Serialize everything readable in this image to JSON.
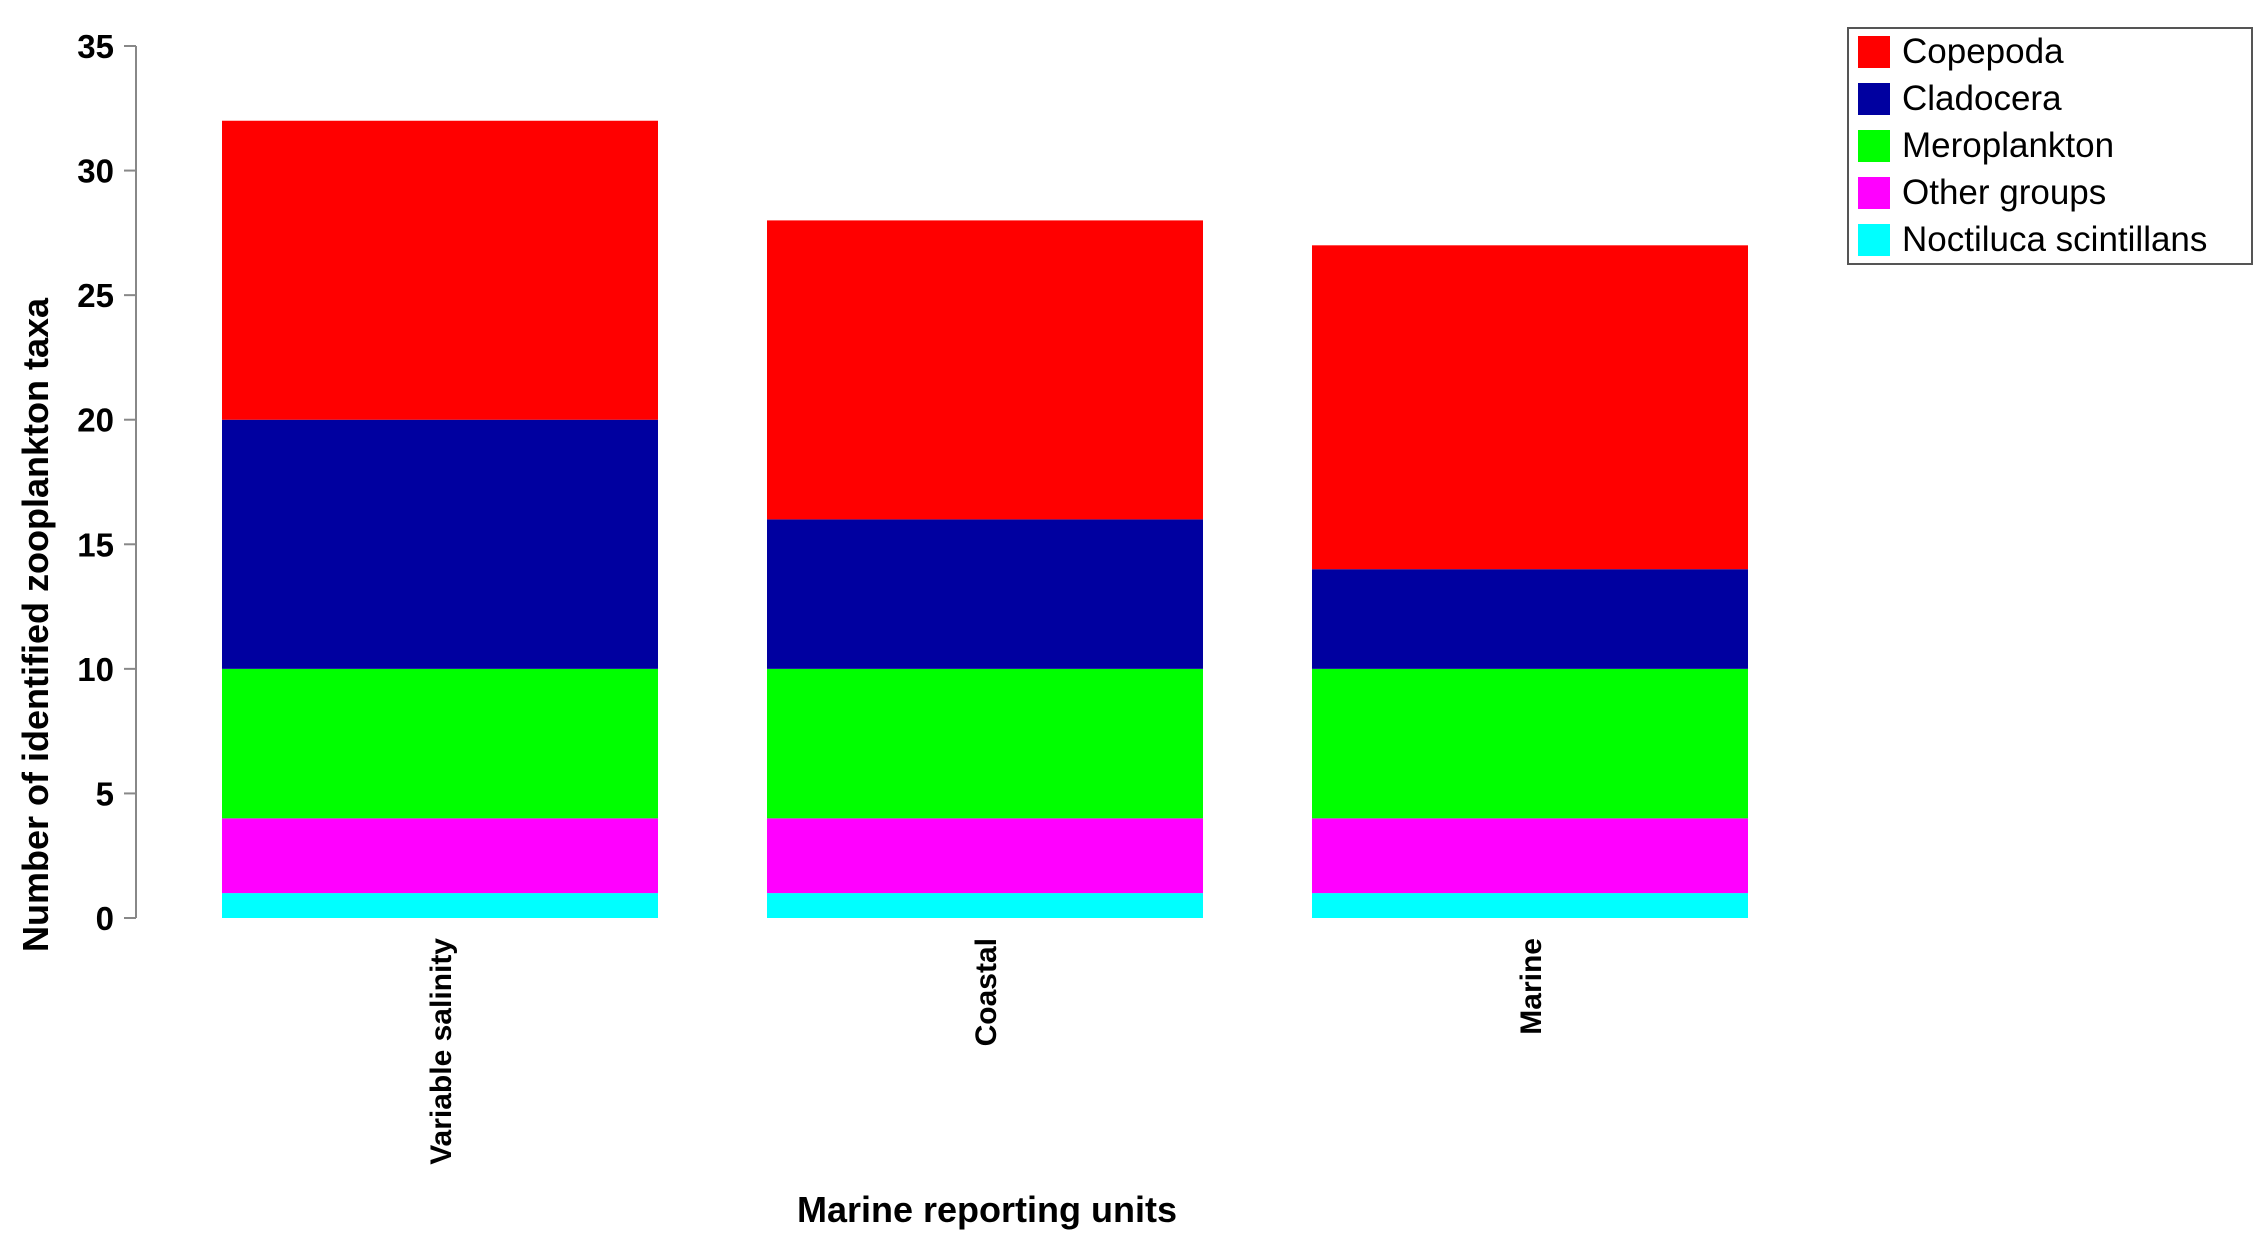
{
  "chart_data": {
    "type": "bar",
    "stacked": true,
    "categories": [
      "Variable salinity",
      "Coastal",
      "Marine"
    ],
    "series": [
      {
        "name": "Noctiluca scintillans",
        "color": "#00FFFF",
        "values": [
          1,
          1,
          1
        ]
      },
      {
        "name": "Other groups",
        "color": "#FF00FF",
        "values": [
          3,
          3,
          3
        ]
      },
      {
        "name": "Meroplankton",
        "color": "#00FF00",
        "values": [
          6,
          6,
          6
        ]
      },
      {
        "name": "Cladocera",
        "color": "#0000A0",
        "values": [
          10,
          6,
          4
        ]
      },
      {
        "name": "Copepoda",
        "color": "#FF0000",
        "values": [
          12,
          12,
          13
        ]
      }
    ],
    "legend_order": [
      "Copepoda",
      "Cladocera",
      "Meroplankton",
      "Other groups",
      "Noctiluca scintillans"
    ],
    "xlabel": "Marine reporting units",
    "ylabel": "Number of identified zooplankton taxa",
    "ylim": [
      0,
      35
    ],
    "yticks": [
      0,
      5,
      10,
      15,
      20,
      25,
      30,
      35
    ],
    "grid": false,
    "legend_position": "top-right"
  }
}
